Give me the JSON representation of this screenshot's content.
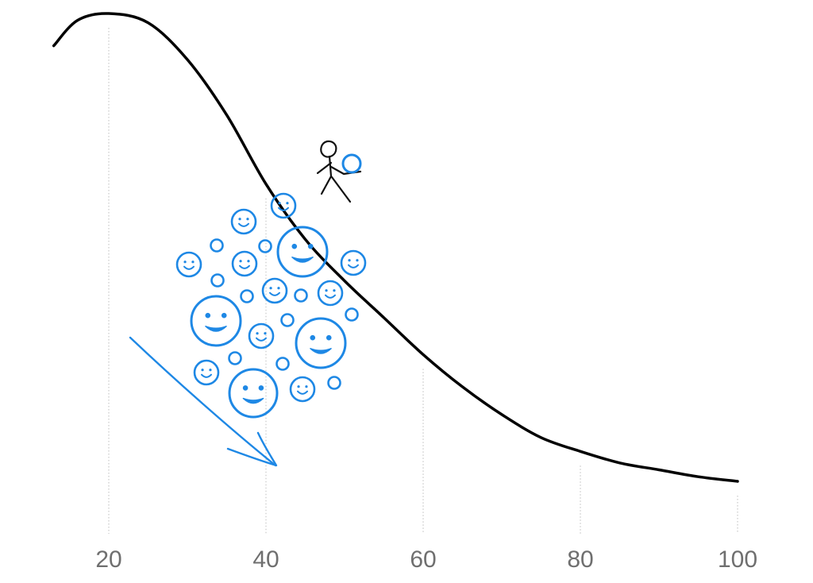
{
  "chart_data": {
    "type": "line",
    "x_ticks": [
      20,
      40,
      60,
      80,
      100
    ],
    "xlim": [
      13,
      100
    ],
    "series": [
      {
        "x": [
          13,
          16,
          20,
          25,
          30,
          35,
          40,
          45,
          50,
          55,
          60,
          65,
          70,
          75,
          80,
          85,
          90,
          95,
          100
        ],
        "y": [
          0.93,
          0.985,
          1.0,
          0.98,
          0.9,
          0.78,
          0.63,
          0.51,
          0.42,
          0.34,
          0.26,
          0.19,
          0.13,
          0.08,
          0.05,
          0.025,
          0.01,
          -0.005,
          -0.015
        ]
      }
    ],
    "grid": "vertical-dotted",
    "colors": {
      "curve": "#000000",
      "accent": "#1E88E5",
      "grid": "#bdbdbd",
      "tick_text": "#6f6f6f"
    }
  },
  "illustration": {
    "figure": "stick-figure-icon",
    "ball": "ball-icon",
    "crowd": "smiley-faces",
    "arrow": "down-right-arrow-icon"
  }
}
